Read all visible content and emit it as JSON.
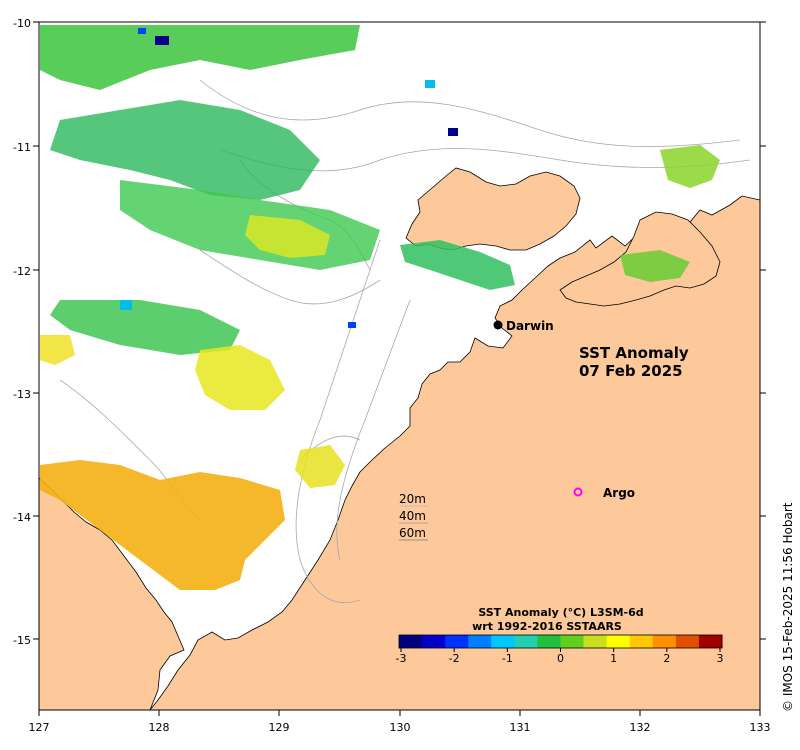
{
  "map": {
    "title_line1": "SST Anomaly",
    "title_line2": "07 Feb 2025",
    "credit": "© IMOS 15-Feb-2025 11:56 Hobart",
    "land_color": "#fdc99a",
    "ocean_color": "#ffffff",
    "longitude_labels": [
      "127",
      "128",
      "129",
      "130",
      "131",
      "132",
      "133"
    ],
    "latitude_labels": [
      "-10",
      "-11",
      "-12",
      "-13",
      "-14",
      "-15"
    ]
  },
  "places": [
    {
      "name": "Darwin",
      "marker": "filled-dot",
      "color": "#000000"
    },
    {
      "name": "Argo",
      "marker": "open-circle",
      "color": "#ff00ff"
    }
  ],
  "depth_legend": [
    "20m",
    "40m",
    "60m"
  ],
  "colorbar": {
    "title_line1": "SST Anomaly (°C) L3SM-6d",
    "title_line2": "wrt 1992-2016 SSTAARS",
    "tick_labels": [
      "-3",
      "-2",
      "-1",
      "0",
      "1",
      "2",
      "3"
    ],
    "colors": [
      "#00007f",
      "#0000c8",
      "#0030ff",
      "#0080ff",
      "#00c8ff",
      "#20d0b0",
      "#20c040",
      "#60d020",
      "#c8e020",
      "#ffff00",
      "#ffc800",
      "#ff9000",
      "#e05000",
      "#a00000"
    ]
  }
}
